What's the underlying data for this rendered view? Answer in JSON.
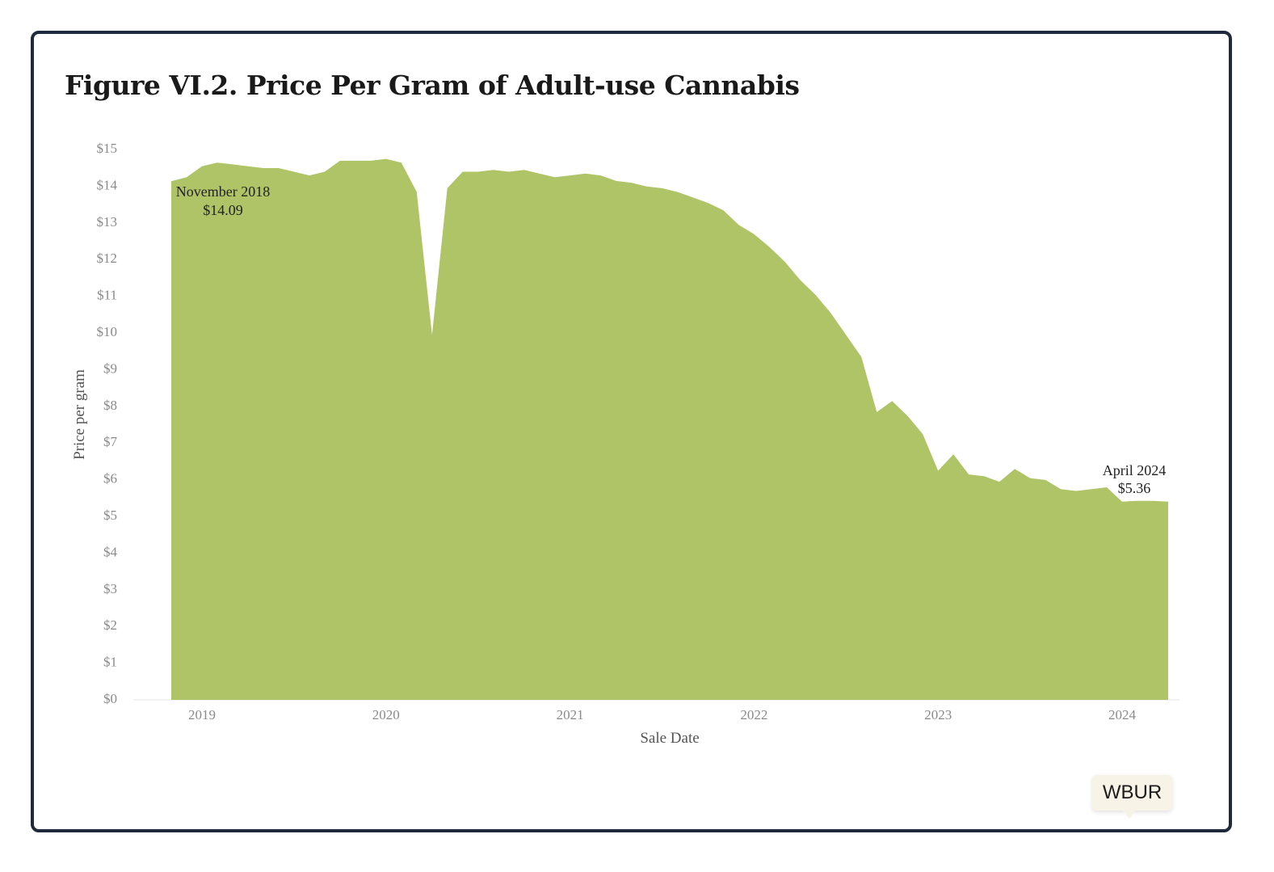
{
  "chart_data": {
    "type": "area",
    "title": "Figure VI.2. Price Per Gram of Adult-use Cannabis",
    "xlabel": "Sale Date",
    "ylabel": "Price per gram",
    "y_ticks": [
      "$0",
      "$1",
      "$2",
      "$3",
      "$4",
      "$5",
      "$6",
      "$7",
      "$8",
      "$9",
      "$10",
      "$11",
      "$12",
      "$13",
      "$14",
      "$15"
    ],
    "x_ticks": [
      "2019",
      "2020",
      "2021",
      "2022",
      "2023",
      "2024"
    ],
    "ylim": [
      0,
      15
    ],
    "grid": false,
    "color": "#afc467",
    "series": [
      {
        "x": [
          "2018-11",
          "2018-12",
          "2019-01",
          "2019-02",
          "2019-03",
          "2019-04",
          "2019-05",
          "2019-06",
          "2019-07",
          "2019-08",
          "2019-09",
          "2019-10",
          "2019-11",
          "2019-12",
          "2020-01",
          "2020-02",
          "2020-03",
          "2020-04",
          "2020-05",
          "2020-06",
          "2020-07",
          "2020-08",
          "2020-09",
          "2020-10",
          "2020-11",
          "2020-12",
          "2021-01",
          "2021-02",
          "2021-03",
          "2021-04",
          "2021-05",
          "2021-06",
          "2021-07",
          "2021-08",
          "2021-09",
          "2021-10",
          "2021-11",
          "2021-12",
          "2022-01",
          "2022-02",
          "2022-03",
          "2022-04",
          "2022-05",
          "2022-06",
          "2022-07",
          "2022-08",
          "2022-09",
          "2022-10",
          "2022-11",
          "2022-12",
          "2023-01",
          "2023-02",
          "2023-03",
          "2023-04",
          "2023-05",
          "2023-06",
          "2023-07",
          "2023-08",
          "2023-09",
          "2023-10",
          "2023-11",
          "2023-12",
          "2024-01",
          "2024-02",
          "2024-03",
          "2024-04"
        ],
        "values": [
          14.09,
          14.2,
          14.5,
          14.6,
          14.55,
          14.5,
          14.45,
          14.45,
          14.35,
          14.25,
          14.35,
          14.65,
          14.65,
          14.65,
          14.7,
          14.6,
          13.8,
          9.9,
          13.9,
          14.35,
          14.35,
          14.4,
          14.35,
          14.4,
          14.3,
          14.2,
          14.25,
          14.3,
          14.25,
          14.1,
          14.05,
          13.95,
          13.9,
          13.8,
          13.65,
          13.5,
          13.3,
          12.9,
          12.65,
          12.3,
          11.9,
          11.4,
          11.0,
          10.5,
          9.9,
          9.3,
          7.8,
          8.1,
          7.7,
          7.2,
          6.2,
          6.65,
          6.1,
          6.05,
          5.9,
          6.25,
          6.0,
          5.95,
          5.7,
          5.65,
          5.7,
          5.75,
          5.36,
          5.38,
          5.38,
          5.36
        ]
      }
    ],
    "annotations": [
      {
        "line1": "November 2018",
        "line2": "$14.09",
        "x": "2018-11",
        "y": 14.09
      },
      {
        "line1": "April 2024",
        "line2": "$5.36",
        "x": "2024-04",
        "y": 5.36
      }
    ]
  },
  "badge": {
    "label": "WBUR"
  }
}
